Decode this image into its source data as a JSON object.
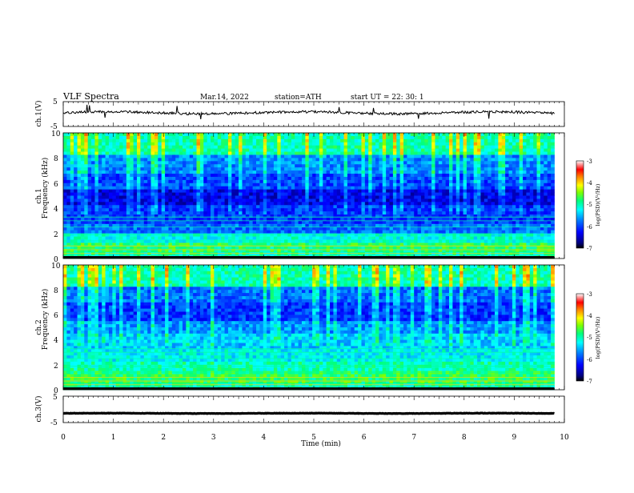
{
  "header": {
    "title": "VLF  Spectra",
    "date": "Mar.14, 2022",
    "station": "station=ATH",
    "start": "start  UT  =    22: 30: 1"
  },
  "chart_data": [
    {
      "type": "line",
      "name": "ch1-waveform",
      "ylabel": "ch.1(V)",
      "ylim": [
        -5,
        5
      ],
      "yticks": [
        "5",
        "-5"
      ],
      "xlim": [
        0,
        10
      ],
      "approx_level": 0.5,
      "data_end_min": 9.8
    },
    {
      "type": "heatmap",
      "name": "ch1-spectrogram",
      "ylabel_line1": "ch.1",
      "ylabel_line2": "Frequency  (kHz)",
      "ylim": [
        0,
        10
      ],
      "yticks": [
        "0",
        "2",
        "4",
        "6",
        "8",
        "10"
      ],
      "xlim": [
        0,
        10
      ],
      "data_end_min": 9.8,
      "colorbar": {
        "label": "log(PSD)(V²/Hz)",
        "range": [
          -7,
          -3
        ],
        "ticks": [
          "-3",
          "-4",
          "-5",
          "-6",
          "-7"
        ]
      }
    },
    {
      "type": "heatmap",
      "name": "ch2-spectrogram",
      "ylabel_line1": "ch.2",
      "ylabel_line2": "Frequency  (kHz)",
      "ylim": [
        0,
        10
      ],
      "yticks": [
        "0",
        "2",
        "4",
        "6",
        "8",
        "10"
      ],
      "xlim": [
        0,
        10
      ],
      "data_end_min": 9.8,
      "colorbar": {
        "label": "log(PSD)(V²/Hz)",
        "range": [
          -7,
          -3
        ],
        "ticks": [
          "-3",
          "-4",
          "-5",
          "-6",
          "-7"
        ]
      }
    },
    {
      "type": "line",
      "name": "ch3-waveform",
      "ylabel": "ch.3(V)",
      "ylim": [
        -5,
        5
      ],
      "yticks": [
        "5",
        "-5"
      ],
      "xlim": [
        0,
        10
      ],
      "approx_level": -1.5,
      "data_end_min": 9.8,
      "xlabel": "Time  (min)",
      "xticks": [
        "0",
        "1",
        "2",
        "3",
        "4",
        "5",
        "6",
        "7",
        "8",
        "9",
        "10"
      ]
    }
  ],
  "colors": {
    "colormap": [
      "#000000",
      "#00007f",
      "#0000ff",
      "#0080ff",
      "#00ffff",
      "#00ff80",
      "#80ff00",
      "#ffff00",
      "#ff8000",
      "#ff0000",
      "#ffffff"
    ],
    "line": "#000000"
  }
}
